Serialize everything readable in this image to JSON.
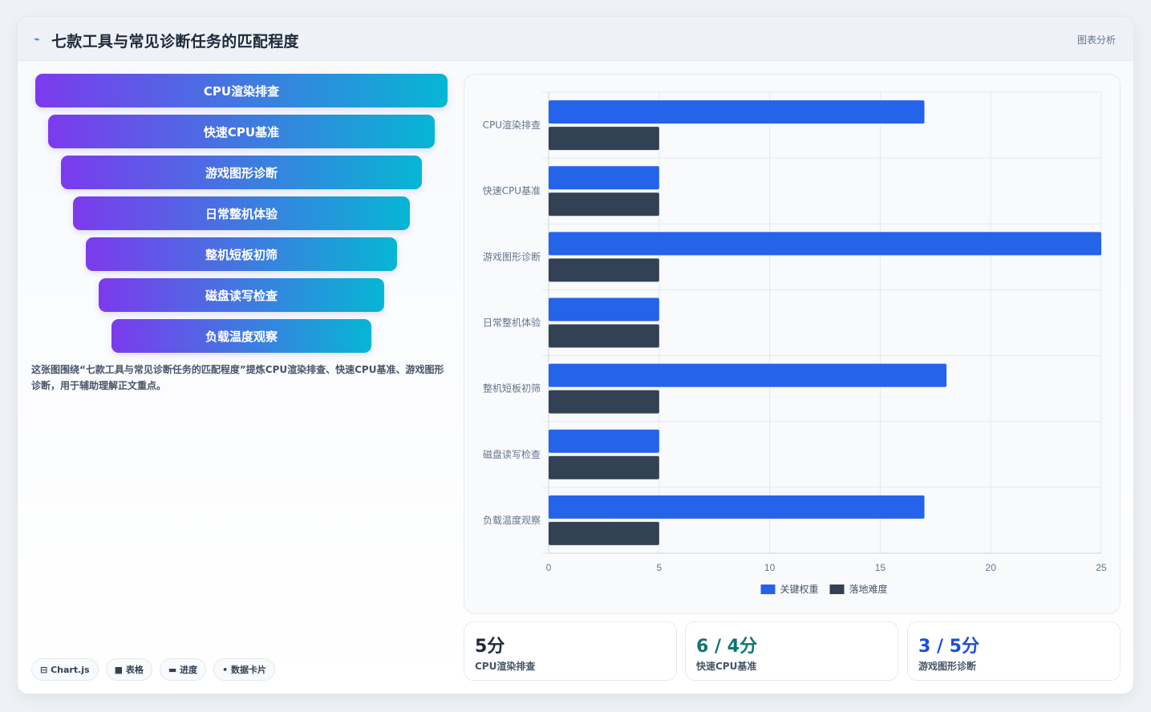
{
  "header": {
    "icon": "chart-line-icon",
    "title": "七款工具与常见诊断任务的匹配程度",
    "tag": "图表分析"
  },
  "funnel": {
    "stages": [
      "CPU渲染排查",
      "快速CPU基准",
      "游戏图形诊断",
      "日常整机体验",
      "整机短板初筛",
      "磁盘读写检查",
      "负载温度观察"
    ]
  },
  "description": "这张图围绕“七款工具与常见诊断任务的匹配程度”提炼CPU渲染排查、快速CPU基准、游戏图形诊断，用于辅助理解正文重点。",
  "chips": [
    {
      "icon": "chart-icon",
      "glyph": "⊟",
      "label": "Chart.js"
    },
    {
      "icon": "table-icon",
      "glyph": "■",
      "label": "表格"
    },
    {
      "icon": "progress-icon",
      "glyph": "▬",
      "label": "进度"
    },
    {
      "icon": "data-card-icon",
      "glyph": "•",
      "label": "数据卡片"
    }
  ],
  "chart_data": {
    "type": "bar",
    "orientation": "horizontal",
    "categories": [
      "CPU渲染排查",
      "快速CPU基准",
      "游戏图形诊断",
      "日常整机体验",
      "整机短板初筛",
      "磁盘读写检查",
      "负载温度观察"
    ],
    "series": [
      {
        "name": "关键权重",
        "color": "#2563eb",
        "values": [
          17,
          5,
          25,
          5,
          18,
          5,
          17
        ]
      },
      {
        "name": "落地难度",
        "color": "#334155",
        "values": [
          5,
          5,
          5,
          5,
          5,
          5,
          5
        ]
      }
    ],
    "xlim": [
      0,
      25
    ],
    "xticks": [
      0,
      5,
      10,
      15,
      20,
      25
    ],
    "grid": true,
    "legend": "bottom"
  },
  "stats": [
    {
      "value": "5分",
      "label": "CPU渲染排查",
      "color": "#1e293b"
    },
    {
      "value": "6 / 4分",
      "label": "快速CPU基准",
      "color": "#0f766e"
    },
    {
      "value": "3 / 5分",
      "label": "游戏图形诊断",
      "color": "#1d4ed8"
    }
  ]
}
